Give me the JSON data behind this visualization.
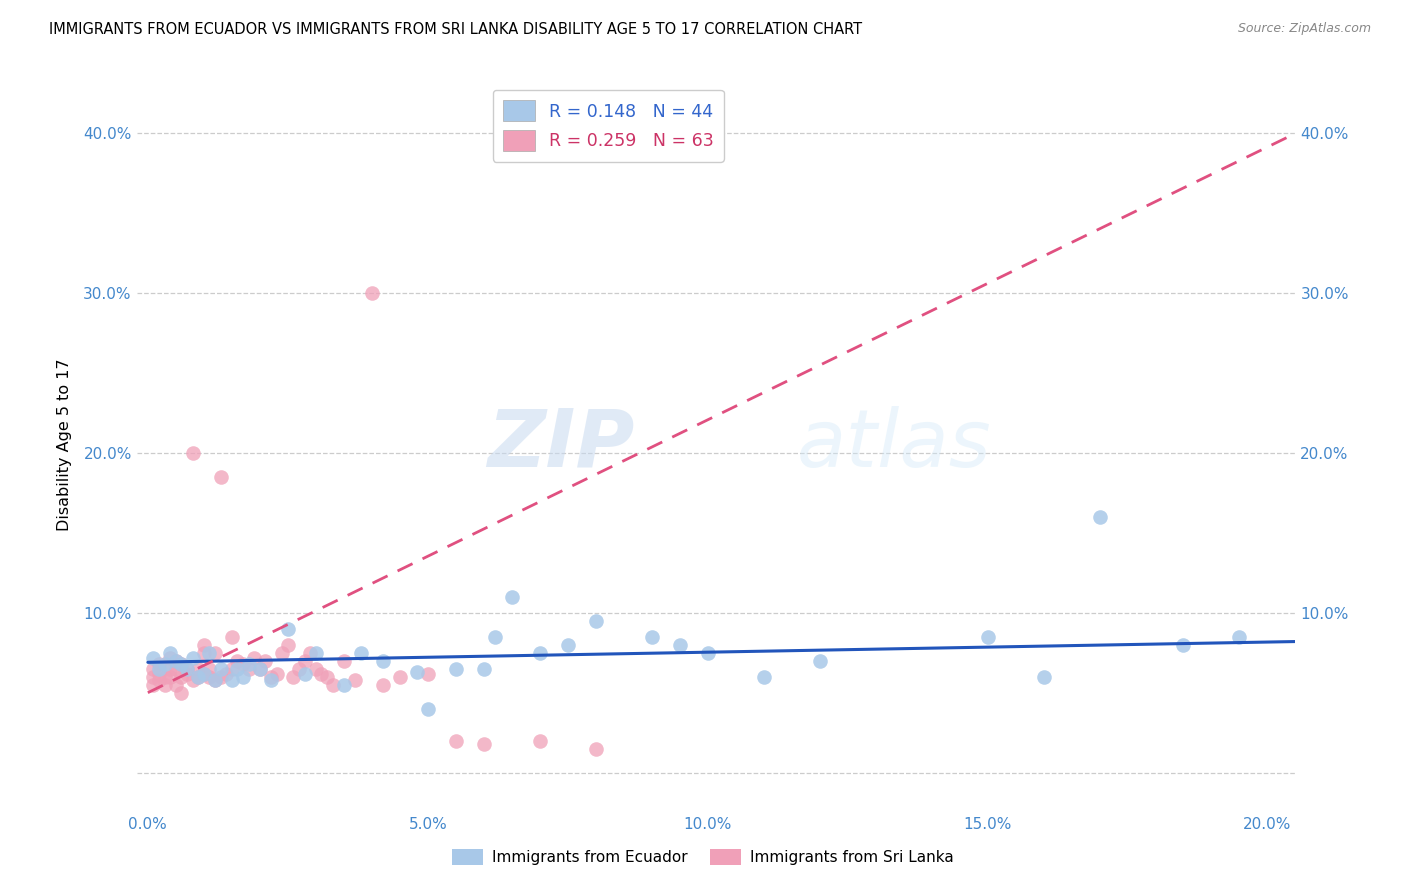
{
  "title": "IMMIGRANTS FROM ECUADOR VS IMMIGRANTS FROM SRI LANKA DISABILITY AGE 5 TO 17 CORRELATION CHART",
  "source": "Source: ZipAtlas.com",
  "ylabel": "Disability Age 5 to 17",
  "xlim": [
    -0.002,
    0.205
  ],
  "ylim": [
    -0.025,
    0.435
  ],
  "yticks": [
    0.0,
    0.1,
    0.2,
    0.3,
    0.4
  ],
  "xticks": [
    0.0,
    0.05,
    0.1,
    0.15,
    0.2
  ],
  "xtick_labels": [
    "0.0%",
    "5.0%",
    "10.0%",
    "15.0%",
    "20.0%"
  ],
  "ytick_labels": [
    "",
    "10.0%",
    "20.0%",
    "30.0%",
    "40.0%"
  ],
  "ecuador_color": "#a8c8e8",
  "srilanka_color": "#f0a0b8",
  "ecuador_line_color": "#2255bb",
  "srilanka_line_color": "#e05080",
  "ecuador_R": 0.148,
  "ecuador_N": 44,
  "srilanka_R": 0.259,
  "srilanka_N": 63,
  "watermark_zip": "ZIP",
  "watermark_atlas": "atlas",
  "legend_label_ecuador": "Immigrants from Ecuador",
  "legend_label_srilanka": "Immigrants from Sri Lanka",
  "ecuador_x": [
    0.001,
    0.002,
    0.003,
    0.004,
    0.005,
    0.006,
    0.007,
    0.008,
    0.009,
    0.01,
    0.011,
    0.012,
    0.013,
    0.015,
    0.016,
    0.017,
    0.018,
    0.02,
    0.022,
    0.025,
    0.028,
    0.03,
    0.035,
    0.038,
    0.042,
    0.048,
    0.05,
    0.055,
    0.06,
    0.062,
    0.065,
    0.07,
    0.075,
    0.08,
    0.09,
    0.095,
    0.1,
    0.11,
    0.12,
    0.15,
    0.16,
    0.17,
    0.185,
    0.195
  ],
  "ecuador_y": [
    0.072,
    0.065,
    0.068,
    0.075,
    0.07,
    0.068,
    0.065,
    0.072,
    0.06,
    0.062,
    0.075,
    0.058,
    0.065,
    0.058,
    0.065,
    0.06,
    0.068,
    0.065,
    0.058,
    0.09,
    0.062,
    0.075,
    0.055,
    0.075,
    0.07,
    0.063,
    0.04,
    0.065,
    0.065,
    0.085,
    0.11,
    0.075,
    0.08,
    0.095,
    0.085,
    0.08,
    0.075,
    0.06,
    0.07,
    0.085,
    0.06,
    0.16,
    0.08,
    0.085
  ],
  "srilanka_x": [
    0.001,
    0.001,
    0.001,
    0.002,
    0.002,
    0.002,
    0.003,
    0.003,
    0.004,
    0.004,
    0.004,
    0.005,
    0.005,
    0.005,
    0.006,
    0.006,
    0.006,
    0.007,
    0.007,
    0.008,
    0.008,
    0.009,
    0.009,
    0.01,
    0.01,
    0.01,
    0.011,
    0.011,
    0.012,
    0.012,
    0.013,
    0.013,
    0.014,
    0.015,
    0.015,
    0.016,
    0.017,
    0.018,
    0.019,
    0.02,
    0.021,
    0.022,
    0.023,
    0.024,
    0.025,
    0.026,
    0.027,
    0.028,
    0.029,
    0.03,
    0.031,
    0.032,
    0.033,
    0.035,
    0.037,
    0.04,
    0.042,
    0.045,
    0.05,
    0.055,
    0.06,
    0.07,
    0.08
  ],
  "srilanka_y": [
    0.065,
    0.06,
    0.055,
    0.068,
    0.062,
    0.058,
    0.06,
    0.055,
    0.065,
    0.06,
    0.072,
    0.07,
    0.055,
    0.065,
    0.06,
    0.068,
    0.05,
    0.062,
    0.065,
    0.058,
    0.2,
    0.065,
    0.06,
    0.075,
    0.08,
    0.062,
    0.065,
    0.06,
    0.075,
    0.058,
    0.06,
    0.185,
    0.062,
    0.065,
    0.085,
    0.07,
    0.068,
    0.065,
    0.072,
    0.065,
    0.07,
    0.06,
    0.062,
    0.075,
    0.08,
    0.06,
    0.065,
    0.07,
    0.075,
    0.065,
    0.062,
    0.06,
    0.055,
    0.07,
    0.058,
    0.3,
    0.055,
    0.06,
    0.062,
    0.02,
    0.018,
    0.02,
    0.015
  ]
}
